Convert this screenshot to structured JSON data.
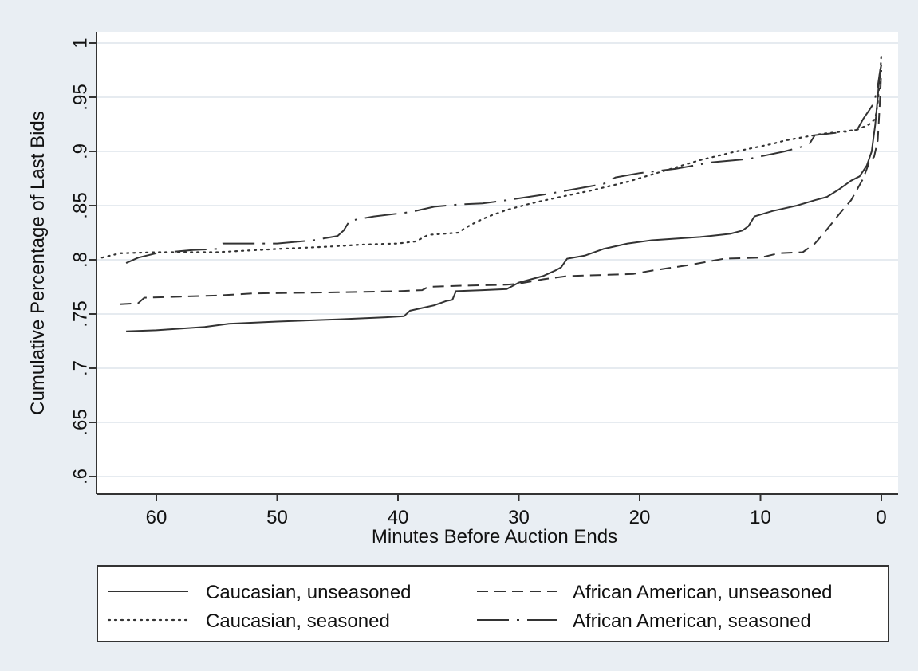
{
  "chart_data": {
    "type": "line",
    "title": "",
    "xlabel": "Minutes Before Auction Ends",
    "ylabel": "Cumulative Percentage of Last Bids",
    "xlim": [
      65,
      -1
    ],
    "ylim": [
      0.6,
      1.0
    ],
    "x_reversed": true,
    "x_ticks": [
      60,
      50,
      40,
      30,
      20,
      10,
      0
    ],
    "x_tick_labels": [
      "60",
      "50",
      "40",
      "30",
      "20",
      "10",
      "0"
    ],
    "y_ticks": [
      0.6,
      0.65,
      0.7,
      0.75,
      0.8,
      0.85,
      0.9,
      0.95,
      1.0
    ],
    "y_tick_labels": [
      ".6",
      ".65",
      ".7",
      ".75",
      ".8",
      ".85",
      ".9",
      ".95",
      "1"
    ],
    "grid": "horizontal",
    "legend_position": "bottom",
    "series": [
      {
        "name": "Caucasian, unseasoned",
        "dash": "solid",
        "color": "#333333",
        "points": [
          [
            62.5,
            0.734
          ],
          [
            60,
            0.735
          ],
          [
            56,
            0.738
          ],
          [
            54,
            0.741
          ],
          [
            50,
            0.743
          ],
          [
            45,
            0.745
          ],
          [
            41,
            0.747
          ],
          [
            39.5,
            0.748
          ],
          [
            39,
            0.753
          ],
          [
            37,
            0.758
          ],
          [
            36,
            0.762
          ],
          [
            35.5,
            0.763
          ],
          [
            35.2,
            0.771
          ],
          [
            33,
            0.772
          ],
          [
            31,
            0.773
          ],
          [
            30,
            0.779
          ],
          [
            28,
            0.785
          ],
          [
            27,
            0.79
          ],
          [
            26.5,
            0.793
          ],
          [
            26,
            0.801
          ],
          [
            24.5,
            0.804
          ],
          [
            23,
            0.81
          ],
          [
            21,
            0.815
          ],
          [
            19,
            0.818
          ],
          [
            15,
            0.821
          ],
          [
            12.5,
            0.824
          ],
          [
            11.5,
            0.827
          ],
          [
            11,
            0.831
          ],
          [
            10.5,
            0.84
          ],
          [
            9,
            0.845
          ],
          [
            7,
            0.85
          ],
          [
            5.5,
            0.855
          ],
          [
            4.5,
            0.858
          ],
          [
            3.5,
            0.865
          ],
          [
            2.5,
            0.873
          ],
          [
            1.8,
            0.877
          ],
          [
            1.2,
            0.887
          ],
          [
            0.8,
            0.9
          ],
          [
            0.5,
            0.925
          ],
          [
            0.3,
            0.95
          ],
          [
            0.15,
            0.97
          ],
          [
            0,
            0.98
          ]
        ]
      },
      {
        "name": "African American, unseasoned",
        "dash": "short",
        "color": "#333333",
        "points": [
          [
            63,
            0.759
          ],
          [
            61.5,
            0.76
          ],
          [
            61,
            0.765
          ],
          [
            58,
            0.766
          ],
          [
            55,
            0.767
          ],
          [
            52,
            0.769
          ],
          [
            45,
            0.77
          ],
          [
            40,
            0.771
          ],
          [
            38,
            0.772
          ],
          [
            37.5,
            0.775
          ],
          [
            35,
            0.776
          ],
          [
            31,
            0.777
          ],
          [
            30,
            0.778
          ],
          [
            28,
            0.782
          ],
          [
            26,
            0.785
          ],
          [
            23,
            0.786
          ],
          [
            20.5,
            0.787
          ],
          [
            19,
            0.79
          ],
          [
            16,
            0.795
          ],
          [
            13,
            0.801
          ],
          [
            10,
            0.802
          ],
          [
            8.5,
            0.806
          ],
          [
            6.5,
            0.807
          ],
          [
            5.5,
            0.815
          ],
          [
            4.5,
            0.828
          ],
          [
            3.5,
            0.842
          ],
          [
            2.5,
            0.855
          ],
          [
            1.5,
            0.875
          ],
          [
            1,
            0.89
          ],
          [
            0.6,
            0.895
          ],
          [
            0.3,
            0.91
          ],
          [
            0.1,
            0.95
          ],
          [
            0,
            0.975
          ]
        ]
      },
      {
        "name": "Caucasian, seasoned",
        "dash": "dotted",
        "color": "#333333",
        "points": [
          [
            64.5,
            0.802
          ],
          [
            63,
            0.806
          ],
          [
            60,
            0.807
          ],
          [
            55,
            0.807
          ],
          [
            50,
            0.81
          ],
          [
            46,
            0.812
          ],
          [
            43,
            0.814
          ],
          [
            40,
            0.815
          ],
          [
            38.5,
            0.817
          ],
          [
            37.5,
            0.823
          ],
          [
            35,
            0.825
          ],
          [
            34.5,
            0.829
          ],
          [
            33.5,
            0.835
          ],
          [
            32.5,
            0.84
          ],
          [
            31,
            0.846
          ],
          [
            29,
            0.852
          ],
          [
            27,
            0.857
          ],
          [
            24,
            0.864
          ],
          [
            21,
            0.872
          ],
          [
            18,
            0.882
          ],
          [
            15,
            0.892
          ],
          [
            12,
            0.9
          ],
          [
            9,
            0.907
          ],
          [
            8,
            0.91
          ],
          [
            6.5,
            0.913
          ],
          [
            5,
            0.916
          ],
          [
            3.5,
            0.918
          ],
          [
            2,
            0.92
          ],
          [
            1,
            0.925
          ],
          [
            0.5,
            0.93
          ],
          [
            0.3,
            0.945
          ],
          [
            0.1,
            0.97
          ],
          [
            0,
            0.99
          ]
        ]
      },
      {
        "name": "African American, seasoned",
        "dash": "long",
        "color": "#333333",
        "points": [
          [
            62.5,
            0.797
          ],
          [
            61.5,
            0.802
          ],
          [
            60,
            0.806
          ],
          [
            57,
            0.809
          ],
          [
            55,
            0.81
          ],
          [
            54.5,
            0.815
          ],
          [
            50,
            0.815
          ],
          [
            47,
            0.818
          ],
          [
            45,
            0.822
          ],
          [
            44.5,
            0.827
          ],
          [
            44,
            0.836
          ],
          [
            42,
            0.84
          ],
          [
            39,
            0.844
          ],
          [
            37,
            0.849
          ],
          [
            35,
            0.851
          ],
          [
            33,
            0.852
          ],
          [
            31,
            0.855
          ],
          [
            28,
            0.86
          ],
          [
            26,
            0.864
          ],
          [
            23,
            0.87
          ],
          [
            22,
            0.876
          ],
          [
            20,
            0.88
          ],
          [
            17,
            0.884
          ],
          [
            14,
            0.89
          ],
          [
            11,
            0.893
          ],
          [
            8,
            0.9
          ],
          [
            6,
            0.906
          ],
          [
            5.5,
            0.915
          ],
          [
            3,
            0.918
          ],
          [
            2,
            0.92
          ],
          [
            1.5,
            0.93
          ],
          [
            1,
            0.938
          ],
          [
            0.6,
            0.945
          ],
          [
            0.3,
            0.96
          ],
          [
            0.1,
            0.975
          ],
          [
            0,
            0.98
          ]
        ]
      }
    ]
  },
  "legend": {
    "items": [
      {
        "label": "Caucasian, unseasoned",
        "dash": "solid"
      },
      {
        "label": "African American, unseasoned",
        "dash": "short"
      },
      {
        "label": "Caucasian, seasoned",
        "dash": "dotted"
      },
      {
        "label": "African American, seasoned",
        "dash": "long"
      }
    ]
  },
  "colors": {
    "background": "#e9eef3",
    "plot_area": "#ffffff",
    "gridline": "#e6ebf0",
    "axis": "#333333",
    "line": "#333333"
  }
}
